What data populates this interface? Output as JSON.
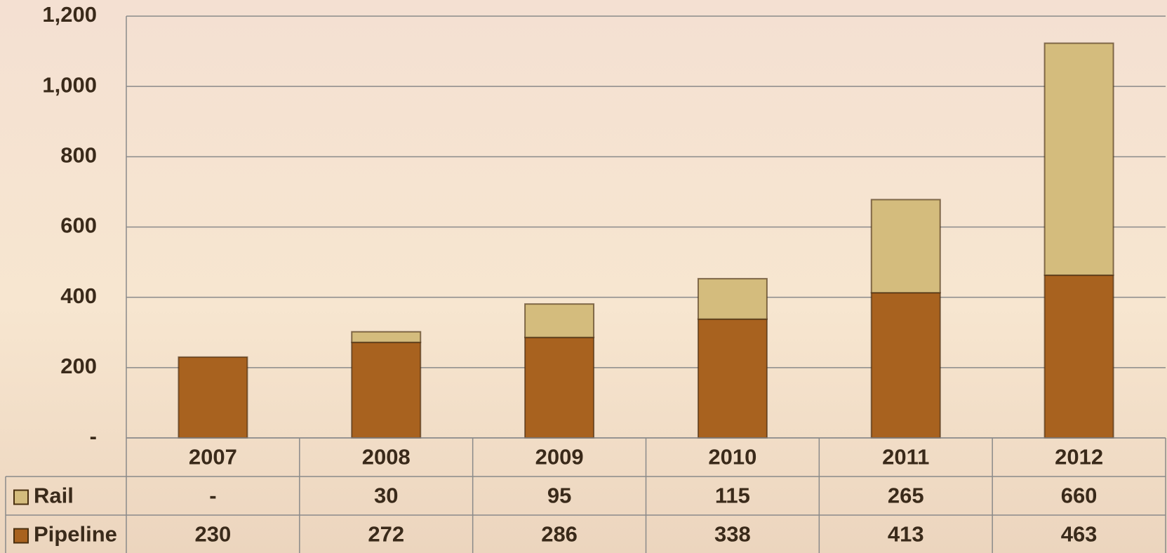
{
  "chart_data": {
    "type": "stacked_bar",
    "categories": [
      "2007",
      "2008",
      "2009",
      "2010",
      "2011",
      "2012"
    ],
    "series": [
      {
        "name": "Rail",
        "color": "#d4bc7d",
        "values": [
          0,
          30,
          95,
          115,
          265,
          660
        ],
        "value_labels": [
          "-",
          "30",
          "95",
          "115",
          "265",
          "660"
        ]
      },
      {
        "name": "Pipeline",
        "color": "#a8621f",
        "values": [
          230,
          272,
          286,
          338,
          413,
          463
        ]
      }
    ],
    "ylim": [
      0,
      1200
    ],
    "yticks": [
      {
        "value": 0,
        "label": "-"
      },
      200,
      400,
      600,
      800,
      {
        "value": 1000,
        "label": "1,000"
      },
      {
        "value": 1200,
        "label": "1,200"
      }
    ],
    "grid": true,
    "legend": "table"
  }
}
